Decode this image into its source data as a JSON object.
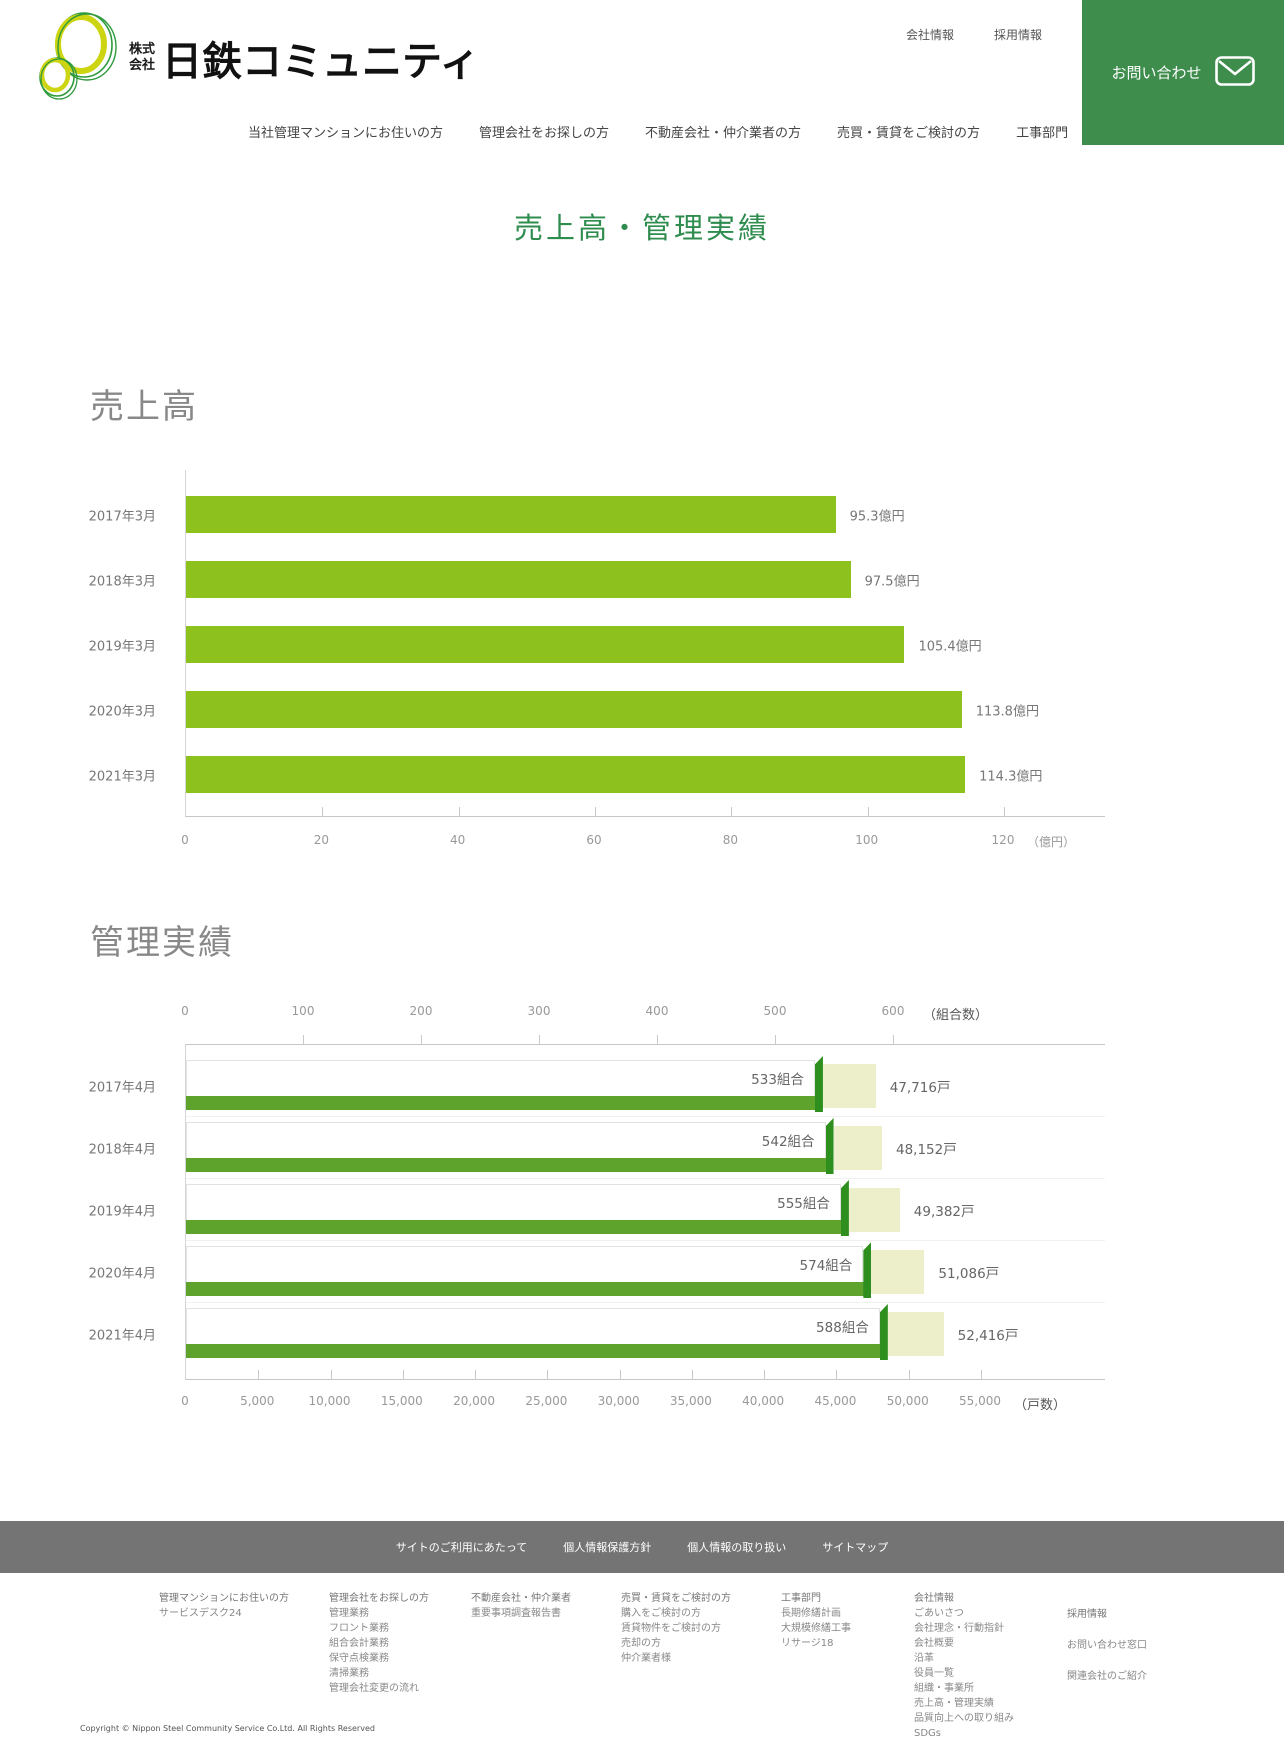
{
  "header": {
    "company_prefix_line1": "株式",
    "company_prefix_line2": "会社",
    "company_name": "日鉄コミュニティ",
    "top_links": [
      "会社情報",
      "採用情報"
    ],
    "contact_label": "お問い合わせ",
    "nav_items": [
      "当社管理マンションにお住いの方",
      "管理会社をお探しの方",
      "不動産会社・仲介業者の方",
      "売買・賃貸をご検討の方",
      "工事部門"
    ]
  },
  "page_title": "売上高・管理実績",
  "chart_data": [
    {
      "type": "bar",
      "orientation": "horizontal",
      "title": "売上高",
      "categories": [
        "2017年3月",
        "2018年3月",
        "2019年3月",
        "2020年3月",
        "2021年3月"
      ],
      "values": [
        95.3,
        97.5,
        105.4,
        113.8,
        114.3
      ],
      "value_labels": [
        "95.3億円",
        "97.5億円",
        "105.4億円",
        "113.8億円",
        "114.3億円"
      ],
      "axis": {
        "ticks": [
          "0",
          "20",
          "40",
          "60",
          "80",
          "100",
          "120"
        ],
        "max": 120,
        "unit": "（億円）"
      }
    },
    {
      "type": "bar",
      "orientation": "horizontal",
      "title": "管理実績",
      "categories": [
        "2017年4月",
        "2018年4月",
        "2019年4月",
        "2020年4月",
        "2021年4月"
      ],
      "series": [
        {
          "name": "組合数",
          "values": [
            533,
            542,
            555,
            574,
            588
          ],
          "labels": [
            "533組合",
            "542組合",
            "555組合",
            "574組合",
            "588組合"
          ],
          "axis": {
            "position": "top",
            "ticks": [
              "0",
              "100",
              "200",
              "300",
              "400",
              "500",
              "600"
            ],
            "max": 600,
            "unit": "（組合数）"
          }
        },
        {
          "name": "戸数",
          "values": [
            47716,
            48152,
            49382,
            51086,
            52416
          ],
          "labels": [
            "47,716戸",
            "48,152戸",
            "49,382戸",
            "51,086戸",
            "52,416戸"
          ],
          "axis": {
            "position": "bottom",
            "ticks": [
              "0",
              "5,000",
              "10,000",
              "15,000",
              "20,000",
              "25,000",
              "30,000",
              "35,000",
              "40,000",
              "45,000",
              "50,000",
              "55,000"
            ],
            "max": 55000,
            "unit": "（戸数）"
          }
        }
      ]
    }
  ],
  "footer": {
    "legal_links": [
      "サイトのご利用にあたって",
      "個人情報保護方針",
      "個人情報の取り扱い",
      "サイトマップ"
    ],
    "columns": [
      {
        "title": "管理マンションにお住いの方",
        "links": [
          "サービスデスク24"
        ]
      },
      {
        "title": "管理会社をお探しの方",
        "links": [
          "管理業務",
          "フロント業務",
          "組合会計業務",
          "保守点検業務",
          "清掃業務",
          "管理会社変更の流れ"
        ]
      },
      {
        "title": "不動産会社・仲介業者",
        "links": [
          "重要事項調査報告書"
        ]
      },
      {
        "title": "売買・賃貸をご検討の方",
        "links": [
          "購入をご検討の方",
          "賃貸物件をご検討の方",
          "売却の方",
          "仲介業者様"
        ]
      },
      {
        "title": "工事部門",
        "links": [
          "長期修繕計画",
          "大規模修繕工事",
          "リサージ18"
        ]
      },
      {
        "title": "会社情報",
        "links": [
          "ごあいさつ",
          "会社理念・行動指針",
          "会社概要",
          "沿革",
          "役員一覧",
          "組織・事業所",
          "売上高・管理実績",
          "品質向上への取り組み",
          "SDGs"
        ]
      },
      {
        "title": "採用情報",
        "links": [
          "お問い合わせ窓口",
          "関連会社のご紹介"
        ]
      }
    ],
    "copyright": "Copyright © Nippon Steel Community Service Co.Ltd. All Rights Reserved"
  },
  "colors": {
    "accent_green": "#3e8d4d",
    "title_green": "#2f8c4f",
    "sales_bar": "#8dc21e",
    "union_bar": "#5ea32b",
    "union_ribbon": "#2e8f1e",
    "households_fill": "#ecefc9",
    "footer_bar": "#747474"
  }
}
